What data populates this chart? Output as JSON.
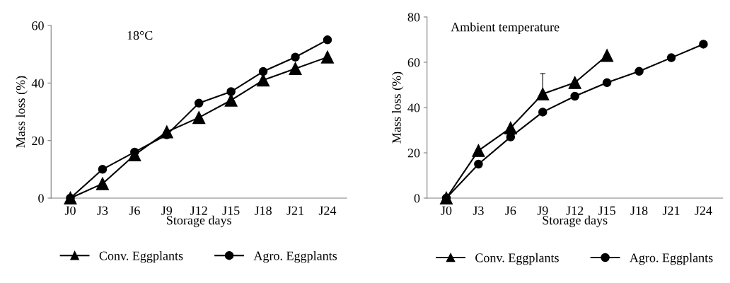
{
  "chart_data": [
    {
      "type": "line",
      "title": "18°C",
      "xlabel": "Storage days",
      "ylabel": "Mass loss (%)",
      "categories": [
        "J0",
        "J3",
        "J6",
        "J9",
        "J12",
        "J15",
        "J18",
        "J21",
        "J24"
      ],
      "ylim": [
        0,
        60
      ],
      "yticks": [
        0,
        20,
        40,
        60
      ],
      "legend": "bottom",
      "grid": false,
      "series": [
        {
          "name": "Conv. Eggplants",
          "color": "#000000",
          "marker": "triangle",
          "values": [
            0,
            5,
            15,
            23,
            28,
            34,
            41,
            45,
            49
          ]
        },
        {
          "name": "Agro. Eggplants",
          "color": "#000000",
          "marker": "circle",
          "values": [
            0,
            10,
            16,
            22,
            33,
            37,
            44,
            49,
            55
          ]
        }
      ]
    },
    {
      "type": "line",
      "title": "Ambient temperature",
      "xlabel": "Storage days",
      "ylabel": "Mass loss (%)",
      "categories": [
        "J0",
        "J3",
        "J6",
        "J9",
        "J12",
        "J15",
        "J18",
        "J21",
        "J24"
      ],
      "ylim": [
        0,
        80
      ],
      "yticks": [
        0,
        20,
        40,
        60,
        80
      ],
      "legend": "bottom",
      "grid": false,
      "series": [
        {
          "name": "Conv. Eggplants",
          "color": "#000000",
          "marker": "triangle",
          "values": [
            0,
            21,
            31,
            46,
            51,
            63,
            null,
            null,
            null
          ],
          "errors": [
            null,
            null,
            null,
            [
              46,
              55
            ],
            null,
            null,
            null,
            null,
            null
          ]
        },
        {
          "name": "Agro. Eggplants",
          "color": "#000000",
          "marker": "circle",
          "values": [
            0,
            15,
            27,
            38,
            45,
            51,
            56,
            62,
            68
          ]
        }
      ]
    }
  ]
}
